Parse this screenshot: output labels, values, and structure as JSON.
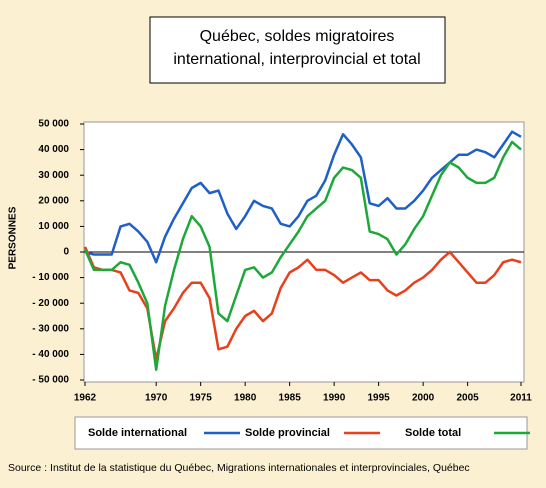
{
  "chart_data": {
    "type": "line",
    "title": [
      "Québec, soldes migratoires",
      "international, interprovincial et total"
    ],
    "ylabel": "PERSONNES",
    "source": "Source : Institut de la statistique du Québec, Migrations internationales et interprovinciales, Québec",
    "x": [
      1962,
      1963,
      1964,
      1965,
      1966,
      1967,
      1968,
      1969,
      1970,
      1971,
      1972,
      1973,
      1974,
      1975,
      1976,
      1977,
      1978,
      1979,
      1980,
      1981,
      1982,
      1983,
      1984,
      1985,
      1986,
      1987,
      1988,
      1989,
      1990,
      1991,
      1992,
      1993,
      1994,
      1995,
      1996,
      1997,
      1998,
      1999,
      2000,
      2001,
      2002,
      2003,
      2004,
      2005,
      2006,
      2007,
      2008,
      2009,
      2010,
      2011
    ],
    "series": [
      {
        "name": "Solde international",
        "color": "#1f5fc8",
        "values": [
          0,
          -1000,
          -1000,
          -1000,
          10000,
          11000,
          8000,
          4000,
          -4000,
          6000,
          13000,
          19000,
          25000,
          27000,
          23000,
          24000,
          15000,
          9000,
          14000,
          20000,
          18000,
          17000,
          11000,
          10000,
          14000,
          20000,
          22000,
          28000,
          38000,
          46000,
          42000,
          37000,
          19000,
          18000,
          21000,
          17000,
          17000,
          20000,
          24000,
          29000,
          32000,
          35000,
          38000,
          38000,
          40000,
          39000,
          37000,
          42000,
          47000,
          45000
        ]
      },
      {
        "name": "Solde provincial",
        "color": "#e8401c",
        "values": [
          2000,
          -6000,
          -7000,
          -7000,
          -8000,
          -15000,
          -16000,
          -22000,
          -42000,
          -27000,
          -22000,
          -16000,
          -12000,
          -12000,
          -18000,
          -38000,
          -37000,
          -30000,
          -25000,
          -23000,
          -27000,
          -24000,
          -14000,
          -8000,
          -6000,
          -3000,
          -7000,
          -7000,
          -9000,
          -12000,
          -10000,
          -8000,
          -11000,
          -11000,
          -15000,
          -17000,
          -15000,
          -12000,
          -10000,
          -7000,
          -3000,
          0,
          -4000,
          -8000,
          -12000,
          -12000,
          -9000,
          -4000,
          -3000,
          -4000
        ]
      },
      {
        "name": "Solde total",
        "color": "#1ea83a",
        "values": [
          1000,
          -7000,
          -7000,
          -7000,
          -4000,
          -5000,
          -12000,
          -20000,
          -46000,
          -21000,
          -7000,
          5000,
          14000,
          10000,
          2000,
          -24000,
          -27000,
          -17000,
          -7000,
          -6000,
          -10000,
          -8000,
          -2000,
          3000,
          8000,
          14000,
          17000,
          20000,
          29000,
          33000,
          32000,
          29000,
          8000,
          7000,
          5000,
          -1000,
          3000,
          9000,
          14000,
          22000,
          30000,
          35000,
          33000,
          29000,
          27000,
          27000,
          29000,
          37000,
          43000,
          40000
        ]
      }
    ],
    "xlim": [
      1962,
      2011
    ],
    "xticks": [
      1962,
      1970,
      1975,
      1980,
      1985,
      1990,
      1995,
      2000,
      2005,
      2011
    ],
    "ylim": [
      -50000,
      50000
    ],
    "yticks": [
      {
        "value": -50000,
        "label": "- 50 000"
      },
      {
        "value": -40000,
        "label": "- 40 000"
      },
      {
        "value": -30000,
        "label": "- 30 000"
      },
      {
        "value": -20000,
        "label": "- 20 000"
      },
      {
        "value": -10000,
        "label": "- 10 000"
      },
      0,
      {
        "value": 10000,
        "label": "10 000"
      },
      {
        "value": 20000,
        "label": "20 000"
      },
      {
        "value": 30000,
        "label": "30 000"
      },
      {
        "value": 40000,
        "label": "40 000"
      },
      {
        "value": 50000,
        "label": "50 000"
      }
    ]
  }
}
